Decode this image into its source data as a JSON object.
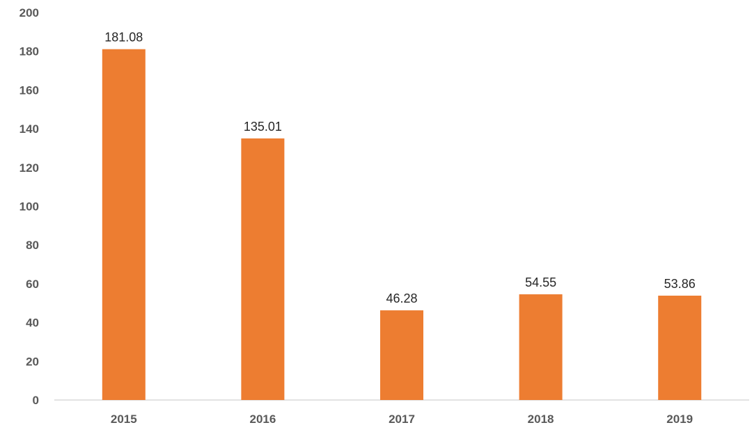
{
  "chart_data": {
    "type": "bar",
    "title": "",
    "xlabel": "",
    "ylabel": "",
    "categories": [
      "2015",
      "2016",
      "2017",
      "2018",
      "2019"
    ],
    "values": [
      181.08,
      135.01,
      46.28,
      54.55,
      53.86
    ],
    "data_labels": [
      "181.08",
      "135.01",
      "46.28",
      "54.55",
      "53.86"
    ],
    "ylim": [
      0,
      200
    ],
    "y_ticks": [
      0,
      20,
      40,
      60,
      80,
      100,
      120,
      140,
      160,
      180,
      200
    ],
    "grid": false,
    "legend": "none",
    "bar_color": "#ED7D31",
    "axis_color": "#D9D9D9"
  }
}
